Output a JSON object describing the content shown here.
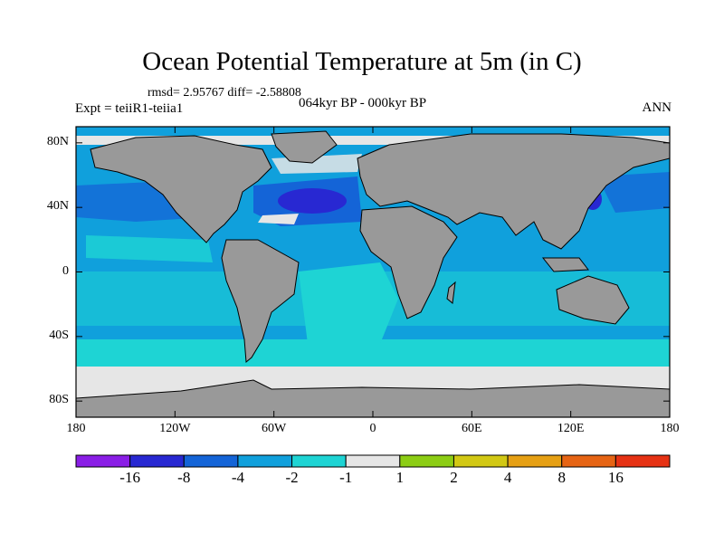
{
  "header": {
    "title": "Ocean Potential Temperature at 5m (in C)",
    "stats": "rmsd= 2.95767 diff= -2.58808",
    "expt": "Expt = teiiR1-teiia1",
    "period": "064kyr BP - 000kyr BP",
    "season": "ANN"
  },
  "axes": {
    "lat_labels": [
      "80N",
      "40N",
      "0",
      "40S",
      "80S"
    ],
    "lat_values": [
      80,
      40,
      0,
      -40,
      -80
    ],
    "lon_labels": [
      "180",
      "120W",
      "60W",
      "0",
      "60E",
      "120E",
      "180"
    ],
    "lon_values": [
      -180,
      -120,
      -60,
      0,
      60,
      120,
      180
    ],
    "lat_range": [
      -90,
      90
    ],
    "lon_range": [
      -180,
      180
    ]
  },
  "colorbar": {
    "labels": [
      "-16",
      "-8",
      "-4",
      "-2",
      "-1",
      "1",
      "2",
      "4",
      "8",
      "16"
    ],
    "colors": [
      "#8a1ee6",
      "#2828d2",
      "#1464d7",
      "#10a0dc",
      "#1ed4d4",
      "#e6e6e6",
      "#8ccd14",
      "#d2c814",
      "#e6a014",
      "#e66414",
      "#e63214"
    ]
  },
  "colors": {
    "land": "#999999",
    "coast": "#000000"
  }
}
